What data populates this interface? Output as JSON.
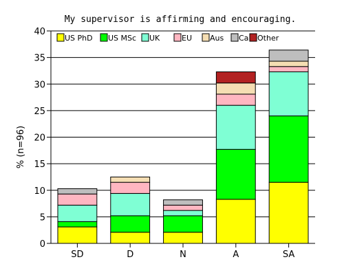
{
  "chart_data": {
    "type": "bar",
    "stacked": true,
    "title": "My supervisor is affirming and encouraging.",
    "xlabel": "",
    "ylabel": "% (n=96)",
    "ylim": [
      0,
      40
    ],
    "yticks": [
      "0",
      "5",
      "10",
      "15",
      "20",
      "25",
      "30",
      "35",
      "40"
    ],
    "grid": "horizontal",
    "legend_position": "top, inside plot",
    "categories": [
      "SD",
      "D",
      "N",
      "A",
      "SA"
    ],
    "series": [
      {
        "name": "US PhD",
        "color": "#ffff00",
        "values": [
          3.1,
          2.1,
          2.1,
          8.3,
          11.5
        ]
      },
      {
        "name": "US MSc",
        "color": "#00ff00",
        "values": [
          1.0,
          3.1,
          3.1,
          9.4,
          12.5
        ]
      },
      {
        "name": "UK",
        "color": "#7fffd4",
        "values": [
          3.1,
          4.2,
          1.0,
          8.3,
          8.3
        ]
      },
      {
        "name": "EU",
        "color": "#ffb6c1",
        "values": [
          2.1,
          2.1,
          1.0,
          2.1,
          1.0
        ]
      },
      {
        "name": "Aus",
        "color": "#f5deb3",
        "values": [
          0.0,
          1.0,
          0.0,
          2.1,
          1.0
        ]
      },
      {
        "name": "Ca",
        "color": "#bebebe",
        "values": [
          1.0,
          0.0,
          1.0,
          0.0,
          2.1
        ]
      },
      {
        "name": "Other",
        "color": "#b22222",
        "values": [
          0.0,
          0.0,
          0.0,
          2.1,
          0.0
        ]
      }
    ]
  }
}
